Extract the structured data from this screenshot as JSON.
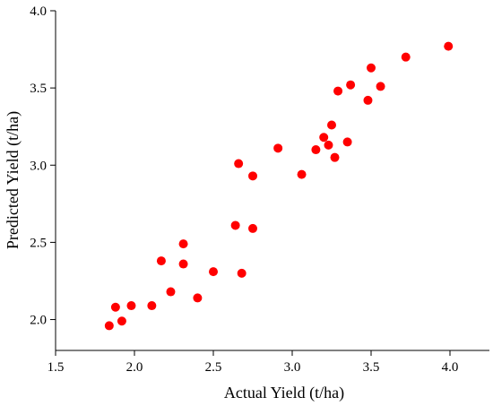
{
  "chart_data": {
    "type": "scatter",
    "title": "",
    "xlabel": "Actual Yield (t/ha)",
    "ylabel": "Predicted Yield (t/ha)",
    "xlim": [
      1.5,
      4.25
    ],
    "ylim": [
      1.8,
      4.0
    ],
    "xticks": [
      "1.5",
      "2.0",
      "2.5",
      "3.0",
      "3.5",
      "4.0"
    ],
    "yticks": [
      "2.0",
      "2.5",
      "3.0",
      "3.5",
      "4.0"
    ],
    "grid": false,
    "point_color": "#ff0000",
    "x": [
      1.84,
      1.88,
      1.92,
      1.98,
      2.11,
      2.17,
      2.23,
      2.31,
      2.31,
      2.4,
      2.5,
      2.64,
      2.66,
      2.68,
      2.75,
      2.75,
      2.91,
      3.06,
      3.15,
      3.2,
      3.23,
      3.25,
      3.27,
      3.29,
      3.35,
      3.37,
      3.48,
      3.5,
      3.56,
      3.72,
      3.99
    ],
    "y": [
      1.96,
      2.08,
      1.99,
      2.09,
      2.09,
      2.38,
      2.18,
      2.49,
      2.36,
      2.14,
      2.31,
      2.61,
      3.01,
      2.3,
      2.93,
      2.59,
      3.11,
      2.94,
      3.1,
      3.18,
      3.13,
      3.26,
      3.05,
      3.48,
      3.15,
      3.52,
      3.42,
      3.63,
      3.51,
      3.7,
      3.77
    ]
  }
}
